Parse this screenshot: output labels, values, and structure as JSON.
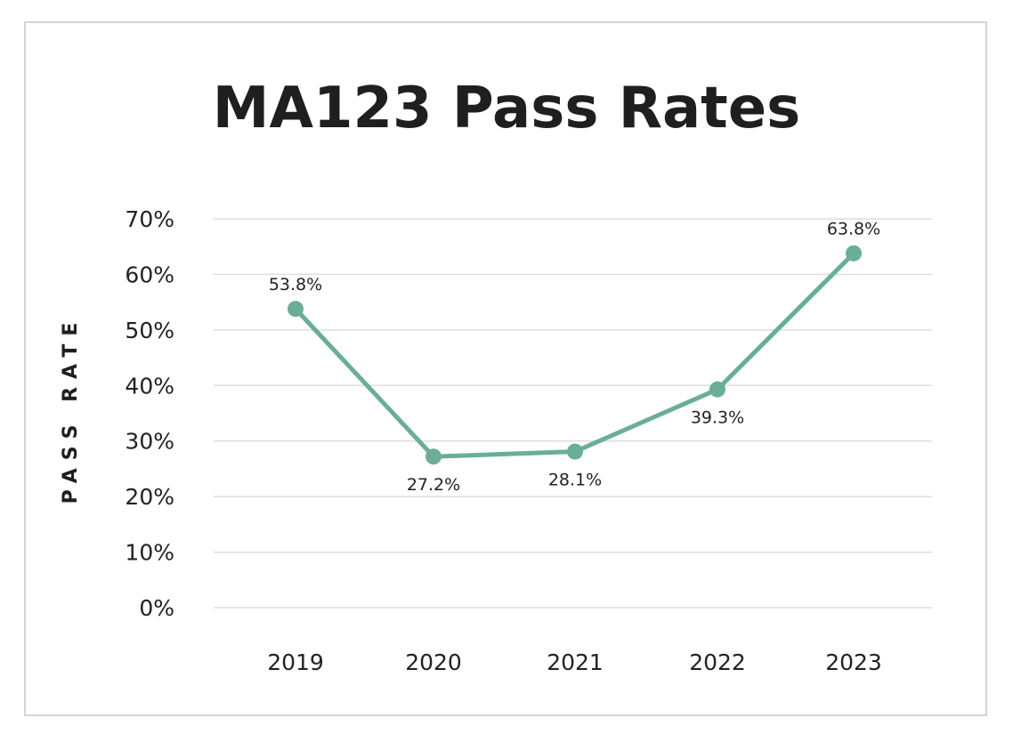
{
  "chart_data": {
    "type": "line",
    "title": "MA123 Pass Rates",
    "xlabel": "",
    "ylabel": "PASS RATE",
    "categories": [
      "2019",
      "2020",
      "2021",
      "2022",
      "2023"
    ],
    "series": [
      {
        "name": "Pass Rate",
        "values": [
          53.8,
          27.2,
          28.1,
          39.3,
          63.8
        ],
        "labels": [
          "53.8%",
          "27.2%",
          "28.1%",
          "39.3%",
          "63.8%"
        ],
        "label_positions": [
          "above",
          "below",
          "below",
          "below",
          "above"
        ]
      }
    ],
    "ylim": [
      0,
      70
    ],
    "yticks": [
      0,
      10,
      20,
      30,
      40,
      50,
      60,
      70
    ],
    "ytick_labels": [
      "0%",
      "10%",
      "20%",
      "30%",
      "40%",
      "50%",
      "60%",
      "70%"
    ],
    "grid": true,
    "colors": {
      "line": "#6aae96",
      "grid": "#dedede",
      "text": "#1f1f1f"
    }
  }
}
